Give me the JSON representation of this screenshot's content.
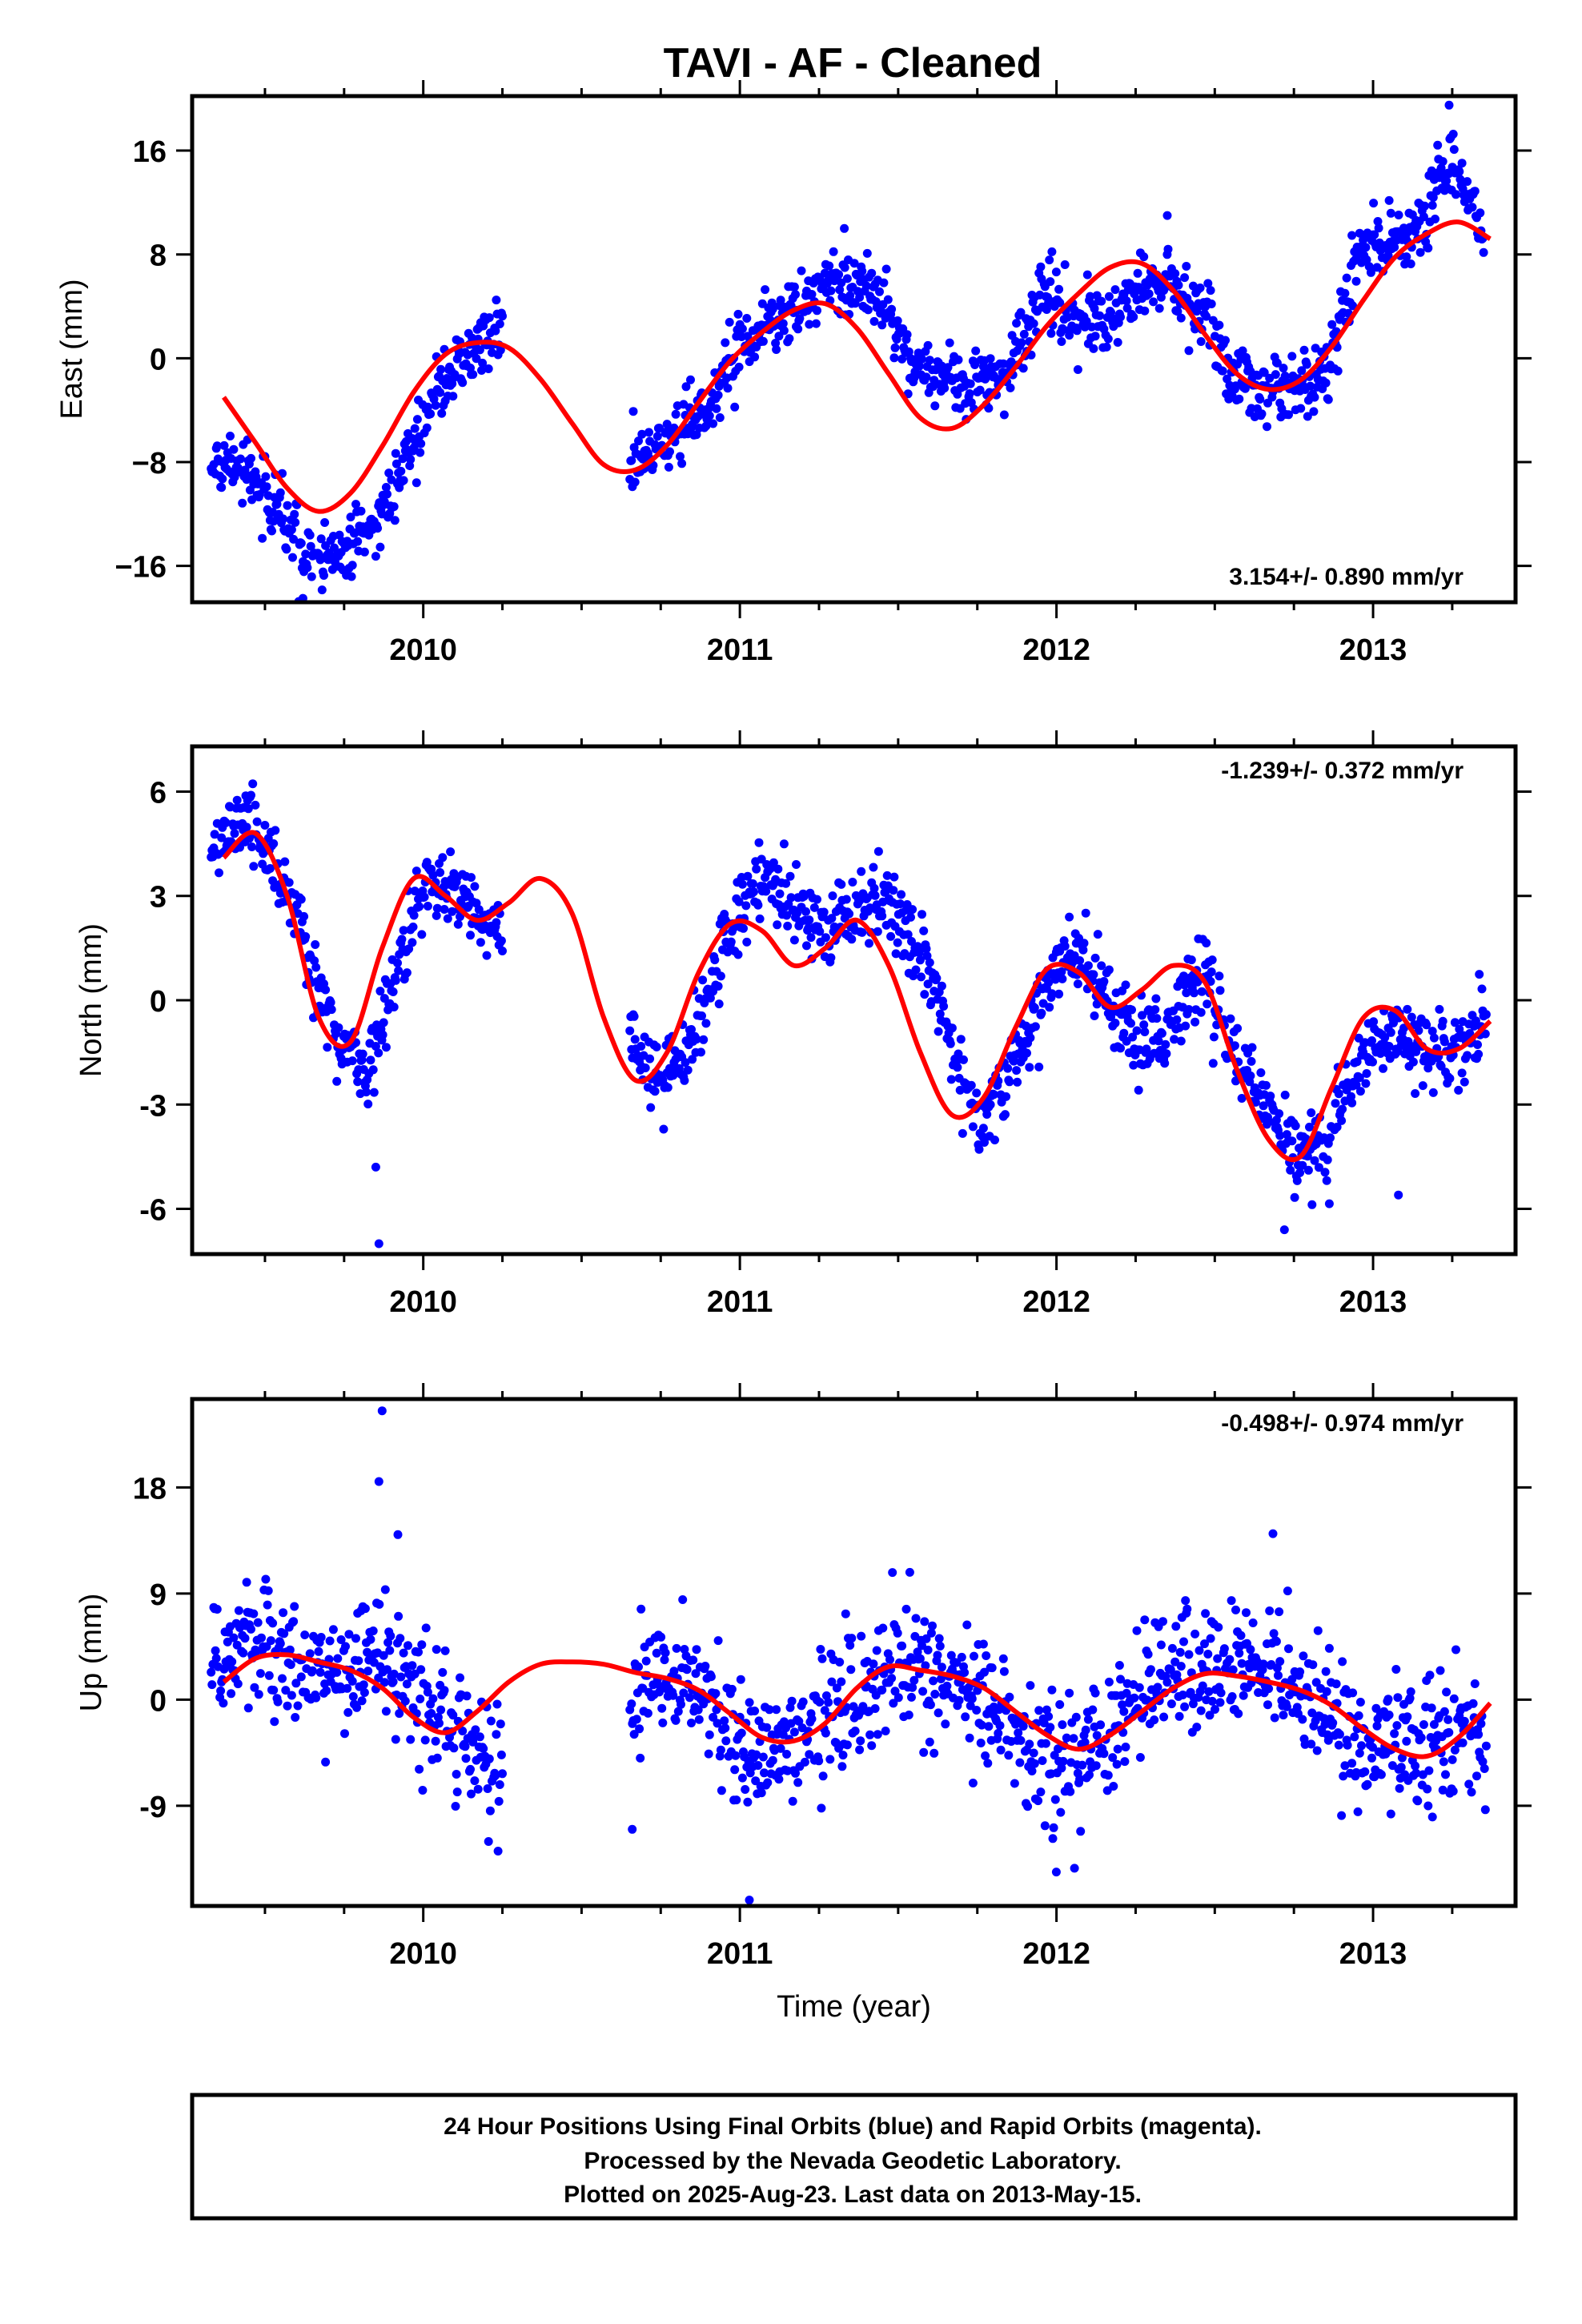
{
  "figure": {
    "title": "TAVI  - AF - Cleaned",
    "footer_lines": [
      "24 Hour Positions Using Final Orbits (blue) and Rapid Orbits (magenta).",
      "Processed by the Nevada Geodetic Laboratory.",
      "Plotted on 2025-Aug-23. Last data on 2013-May-15."
    ],
    "colors": {
      "points": "#0000ff",
      "model": "#ff0000",
      "axes": "#000000",
      "background": "#ffffff"
    }
  },
  "chart_data": [
    {
      "type": "scatter",
      "name": "east",
      "ylabel": "East (mm)",
      "xlabel": "",
      "rate_text": "3.154+/- 0.890 mm/yr",
      "xlim": [
        2009.27,
        2013.45
      ],
      "ylim": [
        -18.8,
        20.2
      ],
      "yticks": [
        -16,
        -8,
        0,
        8,
        16
      ],
      "ytick_labels": [
        "−16",
        "−8",
        "0",
        "8",
        "16"
      ],
      "xticks": [
        2010,
        2011,
        2012,
        2013
      ],
      "xtick_labels": [
        "2010",
        "2011",
        "2012",
        "2013"
      ],
      "data_gap": [
        2010.25,
        2010.65
      ],
      "model_curve": {
        "x": [
          2009.37,
          2009.47,
          2009.57,
          2009.67,
          2009.77,
          2009.87,
          2009.97,
          2010.07,
          2010.17,
          2010.27,
          2010.37,
          2010.47,
          2010.57,
          2010.67,
          2010.77,
          2010.87,
          2010.97,
          2011.07,
          2011.17,
          2011.27,
          2011.37,
          2011.47,
          2011.57,
          2011.67,
          2011.77,
          2011.87,
          2011.97,
          2012.07,
          2012.17,
          2012.27,
          2012.37,
          2012.47,
          2012.57,
          2012.67,
          2012.77,
          2012.87,
          2012.97,
          2013.07,
          2013.17,
          2013.27,
          2013.37
        ],
        "y": [
          -3.0,
          -6.5,
          -10.0,
          -11.8,
          -10.4,
          -6.8,
          -2.6,
          0.3,
          1.2,
          0.8,
          -1.6,
          -5.0,
          -8.2,
          -8.6,
          -6.7,
          -3.4,
          -0.2,
          2.0,
          3.7,
          4.2,
          2.3,
          -1.2,
          -4.6,
          -5.4,
          -3.6,
          -0.7,
          2.5,
          5.0,
          7.0,
          7.3,
          5.2,
          1.8,
          -1.2,
          -2.4,
          -1.7,
          0.9,
          4.5,
          7.8,
          9.6,
          10.5,
          9.2
        ]
      },
      "scatter_trend": {
        "x": [
          2009.33,
          2009.45,
          2009.55,
          2009.65,
          2009.75,
          2009.85,
          2009.95,
          2010.05,
          2010.15,
          2010.22,
          2010.66,
          2010.75,
          2010.85,
          2010.95,
          2011.05,
          2011.15,
          2011.25,
          2011.35,
          2011.45,
          2011.55,
          2011.65,
          2011.75,
          2011.85,
          2011.95,
          2012.05,
          2012.15,
          2012.25,
          2012.35,
          2012.45,
          2012.55,
          2012.65,
          2012.75,
          2012.85,
          2012.95,
          2013.05,
          2013.15,
          2013.25,
          2013.35
        ],
        "y": [
          -8.5,
          -8.5,
          -12.5,
          -15.5,
          -15.0,
          -12.5,
          -8.0,
          -2.0,
          0.0,
          2.0,
          -8.0,
          -7.0,
          -4.5,
          -1.5,
          2.5,
          3.0,
          5.0,
          6.0,
          4.0,
          -1.0,
          -1.5,
          -2.0,
          -1.0,
          5.5,
          3.0,
          3.0,
          5.0,
          6.0,
          4.0,
          -1.0,
          -2.5,
          -2.0,
          -1.5,
          8.0,
          9.0,
          10.0,
          15.5,
          9.0
        ]
      },
      "noise_mm": 1.3,
      "outliers": [
        {
          "x": 2009.62,
          "y": -18.5
        },
        {
          "x": 2013.24,
          "y": 19.5
        },
        {
          "x": 2011.33,
          "y": 10.0
        },
        {
          "x": 2012.35,
          "y": 11.0
        }
      ]
    },
    {
      "type": "scatter",
      "name": "north",
      "ylabel": "North (mm)",
      "xlabel": "",
      "rate_text": "-1.239+/- 0.372 mm/yr",
      "xlim": [
        2009.27,
        2013.45
      ],
      "ylim": [
        -7.3,
        7.3
      ],
      "yticks": [
        -6,
        -3,
        0,
        3,
        6
      ],
      "ytick_labels": [
        "-6",
        "-3",
        "0",
        "3",
        "6"
      ],
      "xticks": [
        2010,
        2011,
        2012,
        2013
      ],
      "xtick_labels": [
        "2010",
        "2011",
        "2012",
        "2013"
      ],
      "data_gap": [
        2010.25,
        2010.65
      ],
      "model_curve": {
        "x": [
          2009.37,
          2009.47,
          2009.57,
          2009.67,
          2009.77,
          2009.87,
          2009.97,
          2010.07,
          2010.17,
          2010.27,
          2010.37,
          2010.47,
          2010.57,
          2010.67,
          2010.77,
          2010.87,
          2010.97,
          2011.07,
          2011.17,
          2011.27,
          2011.37,
          2011.47,
          2011.57,
          2011.67,
          2011.77,
          2011.87,
          2011.97,
          2012.07,
          2012.17,
          2012.27,
          2012.37,
          2012.47,
          2012.57,
          2012.67,
          2012.77,
          2012.87,
          2012.97,
          2013.07,
          2013.17,
          2013.27,
          2013.37
        ],
        "y": [
          4.1,
          4.8,
          3.0,
          -0.5,
          -1.2,
          1.5,
          3.5,
          3.0,
          2.3,
          2.8,
          3.5,
          2.5,
          -0.5,
          -2.3,
          -1.5,
          0.8,
          2.2,
          2.0,
          1.0,
          1.5,
          2.3,
          1.0,
          -1.5,
          -3.3,
          -2.8,
          -0.8,
          0.9,
          0.8,
          -0.2,
          0.3,
          1.0,
          0.5,
          -2.0,
          -4.0,
          -4.5,
          -2.5,
          -0.5,
          -0.3,
          -1.4,
          -1.4,
          -0.6
        ]
      },
      "scatter_trend": {
        "x": [
          2009.33,
          2009.42,
          2009.52,
          2009.62,
          2009.72,
          2009.82,
          2009.92,
          2010.02,
          2010.12,
          2010.22,
          2010.66,
          2010.76,
          2010.86,
          2010.96,
          2011.06,
          2011.16,
          2011.26,
          2011.36,
          2011.46,
          2011.56,
          2011.66,
          2011.76,
          2011.86,
          2011.96,
          2012.06,
          2012.16,
          2012.26,
          2012.36,
          2012.46,
          2012.56,
          2012.66,
          2012.76,
          2012.86,
          2012.96,
          2013.06,
          2013.16,
          2013.26,
          2013.36
        ],
        "y": [
          4.2,
          5.5,
          4.0,
          2.0,
          -1.0,
          -2.0,
          1.0,
          3.5,
          3.0,
          2.0,
          -1.0,
          -2.5,
          -1.0,
          2.0,
          3.5,
          3.0,
          2.0,
          2.5,
          3.0,
          1.5,
          -1.0,
          -3.5,
          -2.0,
          0.0,
          1.5,
          0.0,
          -1.5,
          -1.0,
          1.0,
          -1.5,
          -3.0,
          -4.5,
          -4.0,
          -1.5,
          -1.0,
          -1.5,
          -1.5,
          -0.5
        ]
      },
      "noise_mm": 0.55,
      "outliers": [
        {
          "x": 2009.86,
          "y": -7.0
        },
        {
          "x": 2009.85,
          "y": -4.8
        },
        {
          "x": 2013.08,
          "y": -5.6
        },
        {
          "x": 2012.72,
          "y": -6.6
        }
      ]
    },
    {
      "type": "scatter",
      "name": "up",
      "ylabel": "Up (mm)",
      "xlabel": "Time (year)",
      "rate_text": "-0.498+/- 0.974 mm/yr",
      "xlim": [
        2009.27,
        2013.45
      ],
      "ylim": [
        -17.5,
        25.5
      ],
      "yticks": [
        -9,
        0,
        9,
        18
      ],
      "ytick_labels": [
        "-9",
        "0",
        "9",
        "18"
      ],
      "xticks": [
        2010,
        2011,
        2012,
        2013
      ],
      "xtick_labels": [
        "2010",
        "2011",
        "2012",
        "2013"
      ],
      "data_gap": [
        2010.25,
        2010.65
      ],
      "model_curve": {
        "x": [
          2009.37,
          2009.47,
          2009.57,
          2009.67,
          2009.77,
          2009.87,
          2009.97,
          2010.07,
          2010.17,
          2010.27,
          2010.37,
          2010.47,
          2010.57,
          2010.67,
          2010.77,
          2010.87,
          2010.97,
          2011.07,
          2011.17,
          2011.27,
          2011.37,
          2011.47,
          2011.57,
          2011.67,
          2011.77,
          2011.87,
          2011.97,
          2012.07,
          2012.17,
          2012.27,
          2012.37,
          2012.47,
          2012.57,
          2012.67,
          2012.77,
          2012.87,
          2012.97,
          2013.07,
          2013.17,
          2013.27,
          2013.37
        ],
        "y": [
          1.5,
          3.5,
          3.8,
          3.2,
          2.5,
          1.0,
          -1.5,
          -2.8,
          -1.0,
          1.5,
          3.0,
          3.2,
          3.0,
          2.3,
          1.8,
          0.8,
          -1.2,
          -3.2,
          -3.5,
          -2.0,
          1.0,
          2.8,
          2.5,
          2.0,
          1.0,
          -1.0,
          -3.0,
          -4.2,
          -3.0,
          -1.0,
          1.0,
          2.2,
          2.0,
          1.5,
          0.8,
          -0.5,
          -2.5,
          -4.2,
          -4.8,
          -3.2,
          -0.3
        ]
      },
      "scatter_trend": {
        "x": [
          2009.33,
          2009.45,
          2009.55,
          2009.65,
          2009.75,
          2009.85,
          2009.95,
          2010.05,
          2010.15,
          2010.22,
          2010.66,
          2010.76,
          2010.86,
          2010.96,
          2011.06,
          2011.16,
          2011.26,
          2011.36,
          2011.46,
          2011.56,
          2011.66,
          2011.76,
          2011.86,
          2011.96,
          2012.06,
          2012.16,
          2012.26,
          2012.36,
          2012.46,
          2012.56,
          2012.66,
          2012.76,
          2012.86,
          2012.96,
          2013.06,
          2013.16,
          2013.26,
          2013.36
        ],
        "y": [
          4.0,
          4.5,
          4.0,
          2.0,
          3.0,
          3.5,
          2.0,
          -1.0,
          -3.5,
          -6.0,
          1.0,
          2.0,
          1.5,
          -2.0,
          -6.0,
          -3.5,
          -1.5,
          0.0,
          2.0,
          2.0,
          1.0,
          0.0,
          -3.0,
          -5.5,
          -5.0,
          -4.0,
          1.0,
          2.0,
          2.5,
          3.0,
          3.5,
          1.5,
          -1.0,
          -4.0,
          -4.0,
          -3.5,
          -3.0,
          -4.0
        ]
      },
      "noise_mm": 2.7,
      "outliers": [
        {
          "x": 2009.87,
          "y": 24.5
        },
        {
          "x": 2009.86,
          "y": 18.5
        },
        {
          "x": 2011.03,
          "y": -17.0
        },
        {
          "x": 2010.66,
          "y": -11.0
        },
        {
          "x": 2009.92,
          "y": 14.0
        }
      ]
    }
  ]
}
